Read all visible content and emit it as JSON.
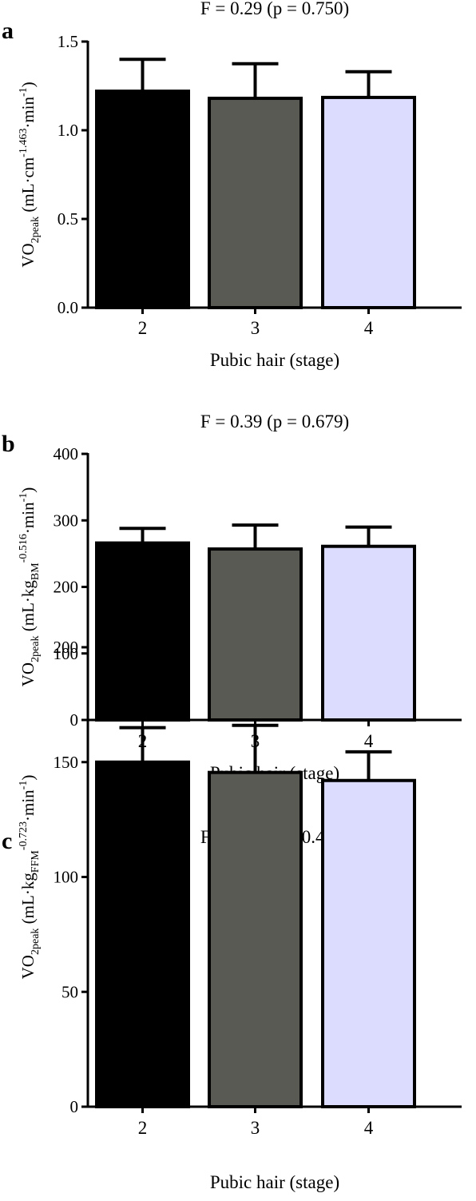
{
  "chart_data": [
    {
      "type": "bar",
      "panel_label": "a",
      "title": "F = 0.29 (p = 0.750)",
      "xlabel": "Pubic hair (stage)",
      "ylabel": {
        "main": "VO",
        "sub": "2peak",
        "parts": [
          {
            "t": " (mL·cm",
            "p": "n"
          },
          {
            "t": "-1.463",
            "p": "sup"
          },
          {
            "t": "·min",
            "p": "n"
          },
          {
            "t": "-1",
            "p": "sup"
          },
          {
            "t": ")",
            "p": "n"
          }
        ]
      },
      "categories": [
        "2",
        "3",
        "4"
      ],
      "values": [
        1.22,
        1.18,
        1.185
      ],
      "errors": [
        0.18,
        0.195,
        0.145
      ],
      "colors": [
        "#000000",
        "#5a5a55",
        "#dcdcff"
      ],
      "ylim": [
        0,
        1.5
      ],
      "yticks": [
        0,
        0.5,
        1.0,
        1.5
      ],
      "ytick_labels": [
        "0.0",
        "0.5",
        "1.0",
        "1.5"
      ]
    },
    {
      "type": "bar",
      "panel_label": "b",
      "title": "F = 0.39 (p = 0.679)",
      "xlabel": "Pubic hair (stage)",
      "ylabel": {
        "main": "VO",
        "sub": "2peak",
        "parts": [
          {
            "t": " (mL·kg",
            "p": "n"
          },
          {
            "t": "BM",
            "p": "sub"
          },
          {
            "t": "-0.516",
            "p": "sup"
          },
          {
            "t": "·min",
            "p": "n"
          },
          {
            "t": "-1",
            "p": "sup"
          },
          {
            "t": ")",
            "p": "n"
          }
        ]
      },
      "categories": [
        "2",
        "3",
        "4"
      ],
      "values": [
        266,
        257,
        261
      ],
      "errors": [
        22,
        36,
        29
      ],
      "colors": [
        "#000000",
        "#5a5a55",
        "#dcdcff"
      ],
      "ylim": [
        0,
        400
      ],
      "yticks": [
        0,
        100,
        200,
        300,
        400
      ],
      "ytick_labels": [
        "0",
        "100",
        "200",
        "300",
        "400"
      ]
    },
    {
      "type": "bar",
      "panel_label": "c",
      "title": "F = 0.81 (p = 0.453)",
      "xlabel": "Pubic hair (stage)",
      "ylabel": {
        "main": "VO",
        "sub": "2peak",
        "parts": [
          {
            "t": " (mL·kg",
            "p": "n"
          },
          {
            "t": "FFM",
            "p": "sub"
          },
          {
            "t": "-0.723",
            "p": "sup"
          },
          {
            "t": "·min",
            "p": "n"
          },
          {
            "t": "-1",
            "p": "sup"
          },
          {
            "t": ")",
            "p": "n"
          }
        ]
      },
      "categories": [
        "2",
        "3",
        "4"
      ],
      "values": [
        150,
        145.5,
        142
      ],
      "errors": [
        15,
        20.5,
        12.5
      ],
      "colors": [
        "#000000",
        "#5a5a55",
        "#dcdcff"
      ],
      "ylim": [
        0,
        200
      ],
      "yticks": [
        0,
        50,
        100,
        150,
        200
      ],
      "ytick_labels": [
        "0",
        "50",
        "100",
        "150",
        "200"
      ]
    }
  ]
}
